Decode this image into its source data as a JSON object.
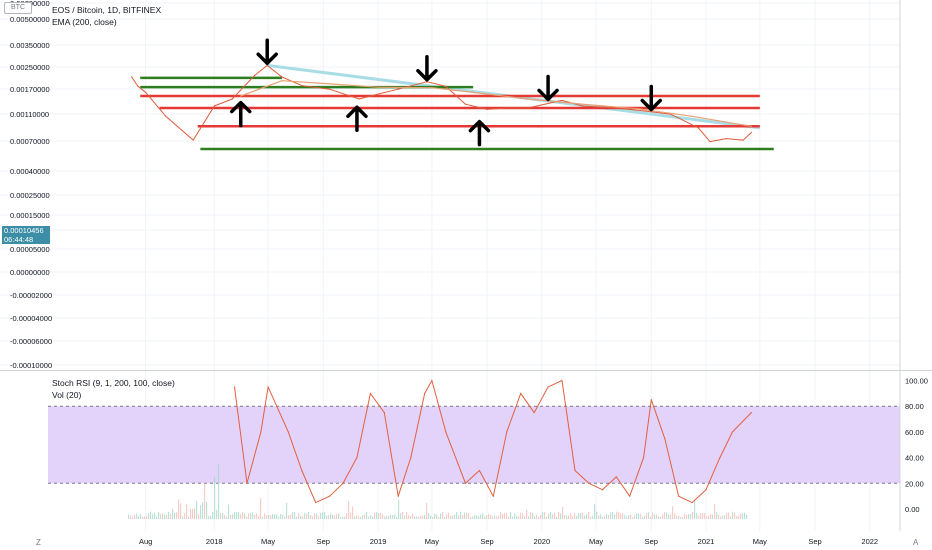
{
  "header": {
    "currency_badge": "BTC",
    "title": "EOS / Bitcoin, 1D, BITFINEX",
    "indicator": "EMA (200, close)"
  },
  "price_tags": {
    "last_price": "0.00010456",
    "countdown": "06:44:48"
  },
  "rsi_panel": {
    "title": "Stoch RSI (9, 1, 200, 100, close)",
    "vol_label": "Vol (20)"
  },
  "corner_labels": {
    "z": "Z",
    "a": "A"
  },
  "colors": {
    "price_line": "#e05a3a",
    "ema_line": "#e9a070",
    "trendline": "#a9dde6",
    "support": "#2e7d1f",
    "resistance": "#e53935",
    "rsi_band": "#e3d3fb",
    "rsi_line": "#e06040",
    "arrow": "#000000"
  },
  "chart_data": [
    {
      "type": "line",
      "title": "EOS / Bitcoin, 1D, BITFINEX",
      "scale": "log",
      "y_axis_ticks": [
        "0.00700000",
        "0.00500000",
        "0.00350000",
        "0.00250000",
        "0.00170000",
        "0.00110000",
        "0.00070000",
        "0.00040000",
        "0.00025000",
        "0.00015000",
        "0.00008000",
        "0.00005000",
        "0.00000000",
        "-0.00002000",
        "-0.00004000",
        "-0.00006000",
        "-0.00010000",
        "-0.00018000",
        "-0.00028000"
      ],
      "x_axis_ticks": [
        "Aug",
        "2018",
        "May",
        "Sep",
        "2019",
        "May",
        "Sep",
        "2020",
        "May",
        "Sep",
        "2021",
        "May",
        "Sep",
        "2022"
      ],
      "series": [
        {
          "name": "EOS/BTC",
          "x": [
            "2017-07-01",
            "2017-07-15",
            "2017-08-01",
            "2017-09-15",
            "2017-11-15",
            "2018-01-01",
            "2018-02-10",
            "2018-04-01",
            "2018-04-29",
            "2018-06-01",
            "2018-07-15",
            "2018-09-15",
            "2018-11-20",
            "2018-12-15",
            "2019-02-15",
            "2019-04-20",
            "2019-06-01",
            "2019-07-15",
            "2019-09-01",
            "2019-10-15",
            "2019-12-01",
            "2020-02-15",
            "2020-04-01",
            "2020-06-15",
            "2020-08-15",
            "2020-10-15",
            "2020-12-15",
            "2021-01-10",
            "2021-02-15",
            "2021-03-25",
            "2021-04-12"
          ],
          "y": [
            0.0013,
            0.00085,
            0.00065,
            0.00022,
            7.5e-05,
            0.00035,
            0.00048,
            0.0014,
            0.0022,
            0.0013,
            0.00088,
            0.00075,
            0.00048,
            0.00055,
            0.00075,
            0.00105,
            0.00085,
            0.00038,
            0.0003,
            0.00032,
            0.00032,
            0.00045,
            0.00035,
            0.00032,
            0.00028,
            0.00024,
            0.00013,
            7e-05,
            8e-05,
            7.5e-05,
            0.000105
          ]
        },
        {
          "name": "EMA (200, close)",
          "x": [
            "2018-03-01",
            "2018-06-01",
            "2018-09-15",
            "2019-01-01",
            "2019-05-01",
            "2019-08-01",
            "2019-12-01",
            "2020-04-01",
            "2020-08-01",
            "2020-12-01",
            "2021-04-12"
          ],
          "y": [
            0.00055,
            0.0011,
            0.00095,
            0.00082,
            0.0008,
            0.00065,
            0.00048,
            0.00038,
            0.00031,
            0.00022,
            0.00014
          ]
        }
      ],
      "annotations": {
        "trendline": {
          "from": [
            "2018-04-29",
            0.0022
          ],
          "to": [
            "2021-05-01",
            0.00013
          ]
        },
        "support_lines": [
          {
            "price": 0.00125,
            "from": "2017-07-20",
            "to": "2018-06-01"
          },
          {
            "price": 0.00082,
            "from": "2017-07-20",
            "to": "2019-08-01"
          },
          {
            "price": 5e-05,
            "from": "2017-12-01",
            "to": "2021-06-01"
          }
        ],
        "resistance_lines": [
          {
            "price": 0.00055,
            "from": "2017-07-20",
            "to": "2021-05-01"
          },
          {
            "price": 0.00032,
            "from": "2017-09-01",
            "to": "2021-05-01"
          },
          {
            "price": 0.00014,
            "from": "2017-11-25",
            "to": "2021-05-01"
          }
        ],
        "down_arrows": [
          [
            "2018-04-29",
            0.0038
          ],
          [
            "2019-04-20",
            0.0018
          ],
          [
            "2020-01-15",
            0.00074
          ],
          [
            "2020-09-01",
            0.00047
          ]
        ],
        "up_arrows": [
          [
            "2018-03-01",
            0.00026
          ],
          [
            "2018-11-15",
            0.00021
          ],
          [
            "2019-08-15",
            0.00011
          ]
        ]
      }
    },
    {
      "type": "line",
      "title": "Stoch RSI (9, 1, 200, 100, close)",
      "y_axis_ticks": [
        "100.00",
        "80.00",
        "60.00",
        "40.00",
        "20.00",
        "0.00"
      ],
      "band": [
        20,
        80
      ],
      "series": [
        {
          "name": "Stoch RSI",
          "x": [
            "2018-02-15",
            "2018-03-15",
            "2018-04-15",
            "2018-05-01",
            "2018-06-15",
            "2018-07-15",
            "2018-08-15",
            "2018-09-15",
            "2018-10-15",
            "2018-11-15",
            "2018-12-15",
            "2019-01-15",
            "2019-02-15",
            "2019-03-15",
            "2019-04-15",
            "2019-05-01",
            "2019-06-01",
            "2019-07-15",
            "2019-08-15",
            "2019-09-15",
            "2019-10-15",
            "2019-11-15",
            "2019-12-15",
            "2020-01-15",
            "2020-02-15",
            "2020-03-15",
            "2020-04-15",
            "2020-05-15",
            "2020-06-15",
            "2020-07-15",
            "2020-08-15",
            "2020-09-01",
            "2020-10-01",
            "2020-11-01",
            "2020-12-01",
            "2021-01-01",
            "2021-02-01",
            "2021-03-01",
            "2021-04-12"
          ],
          "y": [
            95,
            20,
            60,
            95,
            60,
            30,
            5,
            10,
            20,
            40,
            90,
            75,
            10,
            40,
            90,
            100,
            60,
            20,
            30,
            10,
            60,
            90,
            75,
            95,
            100,
            30,
            20,
            15,
            25,
            10,
            40,
            85,
            55,
            10,
            5,
            15,
            40,
            60,
            75
          ]
        }
      ]
    }
  ]
}
